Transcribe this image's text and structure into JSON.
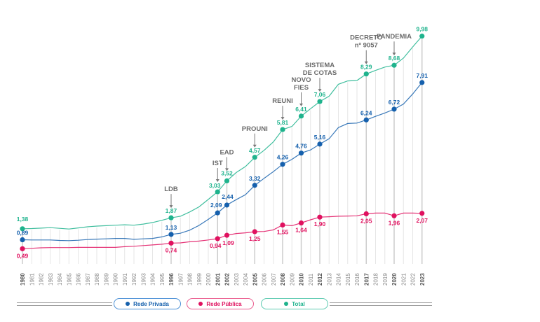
{
  "chart_data": {
    "type": "line",
    "title": "",
    "xlabel": "",
    "ylabel": "",
    "x": [
      1980,
      1981,
      1982,
      1983,
      1984,
      1985,
      1986,
      1987,
      1988,
      1989,
      1990,
      1991,
      1992,
      1993,
      1994,
      1995,
      1996,
      1997,
      1998,
      1999,
      2000,
      2001,
      2002,
      2003,
      2004,
      2005,
      2006,
      2007,
      2008,
      2009,
      2010,
      2011,
      2012,
      2013,
      2014,
      2015,
      2016,
      2017,
      2018,
      2019,
      2020,
      2021,
      2022,
      2023
    ],
    "highlighted_years": [
      1980,
      1996,
      2001,
      2002,
      2005,
      2008,
      2010,
      2012,
      2017,
      2020,
      2023
    ],
    "ylim": [
      0,
      10.5
    ],
    "grid": "vertical",
    "legend_position": "bottom",
    "series": [
      {
        "name": "Rede Privada",
        "color": "#1560ad",
        "values": [
          0.89,
          0.88,
          0.88,
          0.88,
          0.86,
          0.85,
          0.87,
          0.9,
          0.92,
          0.93,
          0.95,
          0.95,
          0.91,
          0.93,
          0.95,
          1.02,
          1.13,
          1.18,
          1.32,
          1.53,
          1.8,
          2.09,
          2.44,
          2.68,
          2.9,
          3.32,
          3.63,
          3.93,
          4.26,
          4.48,
          4.76,
          4.9,
          5.16,
          5.4,
          5.9,
          6.08,
          6.1,
          6.24,
          6.4,
          6.55,
          6.72,
          6.95,
          7.4,
          7.91
        ],
        "labels": {
          "1980": "0,89",
          "1996": "1,13",
          "2001": "2,09",
          "2002": "2,44",
          "2005": "3,32",
          "2008": "4,26",
          "2010": "4,76",
          "2012": "5,16",
          "2017": "6,24",
          "2020": "6,72",
          "2023": "7,91"
        }
      },
      {
        "name": "Rede Pública",
        "color": "#e0115f",
        "values": [
          0.49,
          0.51,
          0.53,
          0.54,
          0.54,
          0.54,
          0.55,
          0.55,
          0.55,
          0.55,
          0.55,
          0.58,
          0.6,
          0.63,
          0.66,
          0.69,
          0.74,
          0.75,
          0.8,
          0.83,
          0.88,
          0.94,
          1.09,
          1.17,
          1.2,
          1.25,
          1.26,
          1.33,
          1.55,
          1.52,
          1.64,
          1.78,
          1.9,
          1.92,
          1.94,
          1.95,
          1.96,
          2.05,
          2.08,
          2.08,
          1.96,
          2.08,
          2.08,
          2.07
        ],
        "labels": {
          "1980": "0,49",
          "1996": "0,74",
          "2001": "0,94",
          "2002": "1,09",
          "2005": "1,25",
          "2008": "1,55",
          "2010": "1,64",
          "2012": "1,90",
          "2017": "2,05",
          "2020": "1,96",
          "2023": "2,07"
        }
      },
      {
        "name": "Total",
        "color": "#1fb38d",
        "values": [
          1.38,
          1.39,
          1.41,
          1.43,
          1.4,
          1.37,
          1.42,
          1.47,
          1.5,
          1.52,
          1.54,
          1.56,
          1.54,
          1.59,
          1.66,
          1.76,
          1.87,
          1.94,
          2.13,
          2.36,
          2.69,
          3.03,
          3.52,
          3.89,
          4.16,
          4.57,
          4.88,
          5.26,
          5.81,
          5.95,
          6.41,
          6.74,
          7.06,
          7.3,
          7.83,
          7.98,
          8.0,
          8.29,
          8.45,
          8.6,
          8.68,
          9.0,
          9.5,
          9.98
        ],
        "labels": {
          "1980": "1,38",
          "1996": "1,87",
          "2001": "3,03",
          "2002": "3,52",
          "2005": "4,57",
          "2008": "5,81",
          "2010": "6,41",
          "2012": "7,06",
          "2017": "8,29",
          "2020": "8,68",
          "2023": "9,98"
        }
      }
    ],
    "annotations": [
      {
        "year": 1996,
        "lines": [
          "LDB"
        ]
      },
      {
        "year": 2001,
        "lines": [
          "IST"
        ]
      },
      {
        "year": 2002,
        "lines": [
          "EAD"
        ]
      },
      {
        "year": 2005,
        "lines": [
          "PROUNI"
        ]
      },
      {
        "year": 2008,
        "lines": [
          "REUNI"
        ]
      },
      {
        "year": 2010,
        "lines": [
          "NOVO",
          "FIES"
        ]
      },
      {
        "year": 2012,
        "lines": [
          "SISTEMA",
          "DE COTAS"
        ]
      },
      {
        "year": 2017,
        "lines": [
          "DECRETO",
          "nº 9057"
        ]
      },
      {
        "year": 2020,
        "lines": [
          "PANDEMIA"
        ]
      }
    ]
  },
  "legend": {
    "items": [
      {
        "label": "Rede Privada",
        "color": "#1560ad",
        "border": "#4a8fd6"
      },
      {
        "label": "Rede Pública",
        "color": "#e0115f",
        "border": "#ea5c8e"
      },
      {
        "label": "Total",
        "color": "#1fb38d",
        "border": "#5ccab0"
      }
    ]
  }
}
